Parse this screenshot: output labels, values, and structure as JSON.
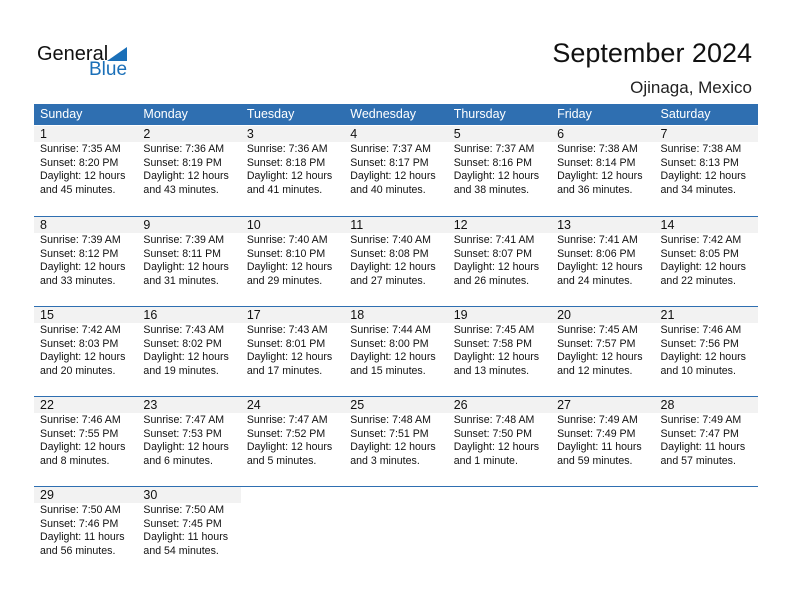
{
  "logo": {
    "text1": "General",
    "text2": "Blue",
    "color": "#1a6fb8"
  },
  "title": "September 2024",
  "location": "Ojinaga, Mexico",
  "accent": "#2f6fb1",
  "weekdays": [
    "Sunday",
    "Monday",
    "Tuesday",
    "Wednesday",
    "Thursday",
    "Friday",
    "Saturday"
  ],
  "weeks": [
    [
      {
        "d": "1",
        "rise": "Sunrise: 7:35 AM",
        "set": "Sunset: 8:20 PM",
        "dl1": "Daylight: 12 hours",
        "dl2": "and 45 minutes."
      },
      {
        "d": "2",
        "rise": "Sunrise: 7:36 AM",
        "set": "Sunset: 8:19 PM",
        "dl1": "Daylight: 12 hours",
        "dl2": "and 43 minutes."
      },
      {
        "d": "3",
        "rise": "Sunrise: 7:36 AM",
        "set": "Sunset: 8:18 PM",
        "dl1": "Daylight: 12 hours",
        "dl2": "and 41 minutes."
      },
      {
        "d": "4",
        "rise": "Sunrise: 7:37 AM",
        "set": "Sunset: 8:17 PM",
        "dl1": "Daylight: 12 hours",
        "dl2": "and 40 minutes."
      },
      {
        "d": "5",
        "rise": "Sunrise: 7:37 AM",
        "set": "Sunset: 8:16 PM",
        "dl1": "Daylight: 12 hours",
        "dl2": "and 38 minutes."
      },
      {
        "d": "6",
        "rise": "Sunrise: 7:38 AM",
        "set": "Sunset: 8:14 PM",
        "dl1": "Daylight: 12 hours",
        "dl2": "and 36 minutes."
      },
      {
        "d": "7",
        "rise": "Sunrise: 7:38 AM",
        "set": "Sunset: 8:13 PM",
        "dl1": "Daylight: 12 hours",
        "dl2": "and 34 minutes."
      }
    ],
    [
      {
        "d": "8",
        "rise": "Sunrise: 7:39 AM",
        "set": "Sunset: 8:12 PM",
        "dl1": "Daylight: 12 hours",
        "dl2": "and 33 minutes."
      },
      {
        "d": "9",
        "rise": "Sunrise: 7:39 AM",
        "set": "Sunset: 8:11 PM",
        "dl1": "Daylight: 12 hours",
        "dl2": "and 31 minutes."
      },
      {
        "d": "10",
        "rise": "Sunrise: 7:40 AM",
        "set": "Sunset: 8:10 PM",
        "dl1": "Daylight: 12 hours",
        "dl2": "and 29 minutes."
      },
      {
        "d": "11",
        "rise": "Sunrise: 7:40 AM",
        "set": "Sunset: 8:08 PM",
        "dl1": "Daylight: 12 hours",
        "dl2": "and 27 minutes."
      },
      {
        "d": "12",
        "rise": "Sunrise: 7:41 AM",
        "set": "Sunset: 8:07 PM",
        "dl1": "Daylight: 12 hours",
        "dl2": "and 26 minutes."
      },
      {
        "d": "13",
        "rise": "Sunrise: 7:41 AM",
        "set": "Sunset: 8:06 PM",
        "dl1": "Daylight: 12 hours",
        "dl2": "and 24 minutes."
      },
      {
        "d": "14",
        "rise": "Sunrise: 7:42 AM",
        "set": "Sunset: 8:05 PM",
        "dl1": "Daylight: 12 hours",
        "dl2": "and 22 minutes."
      }
    ],
    [
      {
        "d": "15",
        "rise": "Sunrise: 7:42 AM",
        "set": "Sunset: 8:03 PM",
        "dl1": "Daylight: 12 hours",
        "dl2": "and 20 minutes."
      },
      {
        "d": "16",
        "rise": "Sunrise: 7:43 AM",
        "set": "Sunset: 8:02 PM",
        "dl1": "Daylight: 12 hours",
        "dl2": "and 19 minutes."
      },
      {
        "d": "17",
        "rise": "Sunrise: 7:43 AM",
        "set": "Sunset: 8:01 PM",
        "dl1": "Daylight: 12 hours",
        "dl2": "and 17 minutes."
      },
      {
        "d": "18",
        "rise": "Sunrise: 7:44 AM",
        "set": "Sunset: 8:00 PM",
        "dl1": "Daylight: 12 hours",
        "dl2": "and 15 minutes."
      },
      {
        "d": "19",
        "rise": "Sunrise: 7:45 AM",
        "set": "Sunset: 7:58 PM",
        "dl1": "Daylight: 12 hours",
        "dl2": "and 13 minutes."
      },
      {
        "d": "20",
        "rise": "Sunrise: 7:45 AM",
        "set": "Sunset: 7:57 PM",
        "dl1": "Daylight: 12 hours",
        "dl2": "and 12 minutes."
      },
      {
        "d": "21",
        "rise": "Sunrise: 7:46 AM",
        "set": "Sunset: 7:56 PM",
        "dl1": "Daylight: 12 hours",
        "dl2": "and 10 minutes."
      }
    ],
    [
      {
        "d": "22",
        "rise": "Sunrise: 7:46 AM",
        "set": "Sunset: 7:55 PM",
        "dl1": "Daylight: 12 hours",
        "dl2": "and 8 minutes."
      },
      {
        "d": "23",
        "rise": "Sunrise: 7:47 AM",
        "set": "Sunset: 7:53 PM",
        "dl1": "Daylight: 12 hours",
        "dl2": "and 6 minutes."
      },
      {
        "d": "24",
        "rise": "Sunrise: 7:47 AM",
        "set": "Sunset: 7:52 PM",
        "dl1": "Daylight: 12 hours",
        "dl2": "and 5 minutes."
      },
      {
        "d": "25",
        "rise": "Sunrise: 7:48 AM",
        "set": "Sunset: 7:51 PM",
        "dl1": "Daylight: 12 hours",
        "dl2": "and 3 minutes."
      },
      {
        "d": "26",
        "rise": "Sunrise: 7:48 AM",
        "set": "Sunset: 7:50 PM",
        "dl1": "Daylight: 12 hours",
        "dl2": "and 1 minute."
      },
      {
        "d": "27",
        "rise": "Sunrise: 7:49 AM",
        "set": "Sunset: 7:49 PM",
        "dl1": "Daylight: 11 hours",
        "dl2": "and 59 minutes."
      },
      {
        "d": "28",
        "rise": "Sunrise: 7:49 AM",
        "set": "Sunset: 7:47 PM",
        "dl1": "Daylight: 11 hours",
        "dl2": "and 57 minutes."
      }
    ],
    [
      {
        "d": "29",
        "rise": "Sunrise: 7:50 AM",
        "set": "Sunset: 7:46 PM",
        "dl1": "Daylight: 11 hours",
        "dl2": "and 56 minutes."
      },
      {
        "d": "30",
        "rise": "Sunrise: 7:50 AM",
        "set": "Sunset: 7:45 PM",
        "dl1": "Daylight: 11 hours",
        "dl2": "and 54 minutes."
      }
    ]
  ]
}
